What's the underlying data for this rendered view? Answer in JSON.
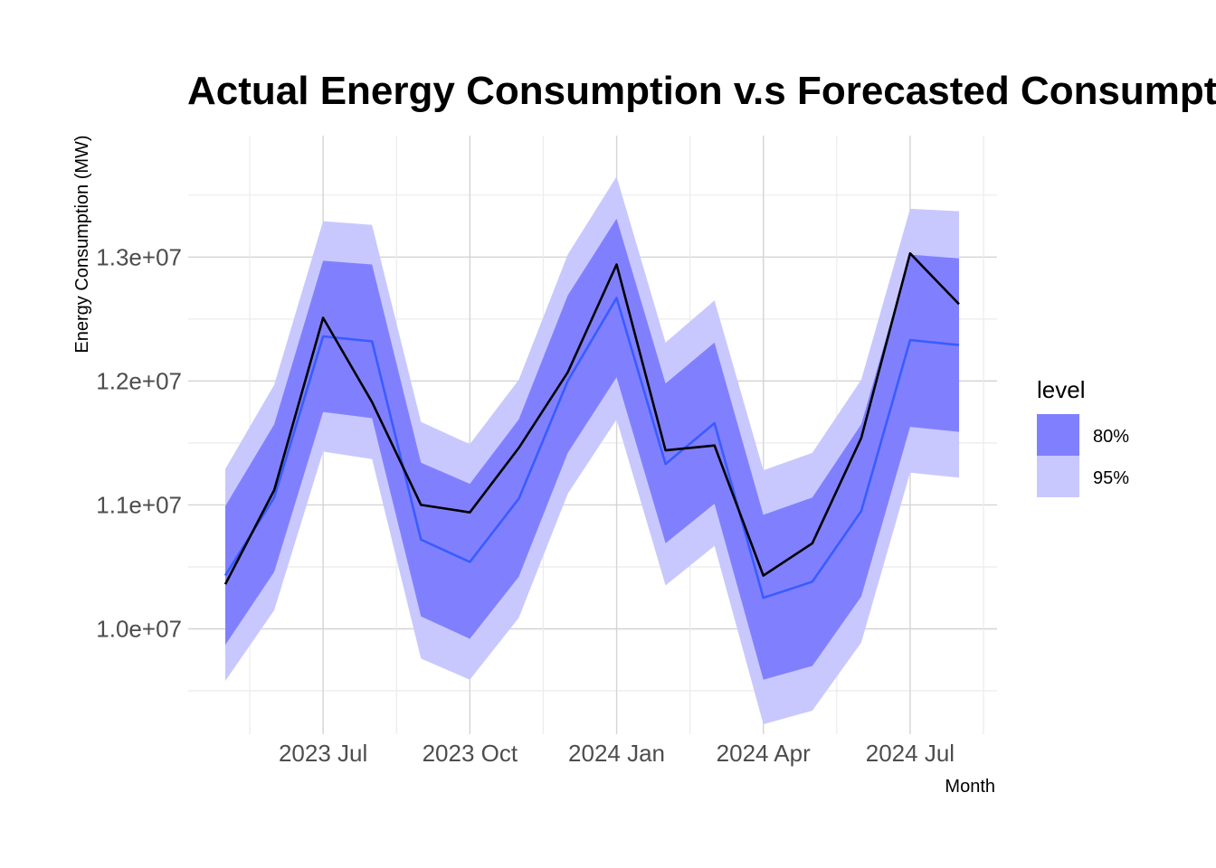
{
  "chart_data": {
    "type": "line",
    "title": "Actual Energy Consumption v.s Forecasted Consumptions",
    "xlabel": "Month",
    "ylabel": "Energy Consumption (MW)",
    "x": [
      "2023-05",
      "2023-06",
      "2023-07",
      "2023-08",
      "2023-09",
      "2023-10",
      "2023-11",
      "2023-12",
      "2024-01",
      "2024-02",
      "2024-03",
      "2024-04",
      "2024-05",
      "2024-06",
      "2024-07",
      "2024-08"
    ],
    "x_ticks": [
      "2023 Jul",
      "2023 Oct",
      "2024 Jan",
      "2024 Apr",
      "2024 Jul"
    ],
    "y_ticks": [
      "1.0e+07",
      "1.1e+07",
      "1.2e+07",
      "1.3e+07"
    ],
    "y_tick_values": [
      10000000,
      11000000,
      12000000,
      13000000
    ],
    "ylim": [
      9150000,
      13980000
    ],
    "grid": true,
    "legend": {
      "title": "level",
      "position": "right",
      "entries": [
        {
          "label": "80%",
          "color": "#8080ff"
        },
        {
          "label": "95%",
          "color": "#c8c8ff"
        }
      ]
    },
    "series": [
      {
        "values": [
          10360000,
          11120000,
          12510000,
          11830000,
          11000000,
          10940000,
          11460000,
          12070000,
          12940000,
          11440000,
          11480000,
          10430000,
          10690000,
          11540000,
          13030000,
          12620000
        ],
        "color": "#000000"
      },
      {
        "values": [
          10430000,
          11060000,
          12360000,
          12320000,
          10720000,
          10540000,
          11050000,
          12000000,
          12670000,
          11330000,
          11660000,
          10250000,
          10380000,
          10950000,
          12330000,
          12290000
        ],
        "color": "#3a5cff"
      }
    ],
    "bands": [
      {
        "level": "95%",
        "lower": [
          9580000,
          10150000,
          11430000,
          11370000,
          9760000,
          9590000,
          10090000,
          11090000,
          11690000,
          10350000,
          10670000,
          9230000,
          9340000,
          9890000,
          11260000,
          11220000
        ],
        "upper": [
          11290000,
          11970000,
          13290000,
          13260000,
          11670000,
          11490000,
          12010000,
          13020000,
          13650000,
          12310000,
          12650000,
          11280000,
          11420000,
          12010000,
          13390000,
          13370000
        ]
      },
      {
        "level": "80%",
        "lower": [
          9870000,
          10460000,
          11750000,
          11700000,
          10100000,
          9920000,
          10420000,
          11420000,
          12030000,
          10690000,
          11010000,
          9590000,
          9700000,
          10260000,
          11630000,
          11590000
        ],
        "upper": [
          10990000,
          11650000,
          12970000,
          12940000,
          11340000,
          11170000,
          11690000,
          12690000,
          13310000,
          11980000,
          12310000,
          10920000,
          11060000,
          11650000,
          13020000,
          12990000
        ]
      }
    ]
  }
}
